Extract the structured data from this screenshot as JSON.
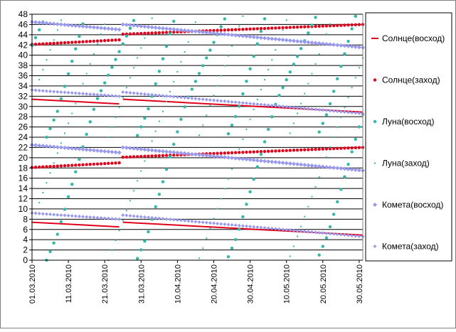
{
  "chart_data": {
    "type": "scatter",
    "x_range": [
      "01.03.2010",
      "31.05.2010"
    ],
    "x_ticks": [
      "01.03.2010",
      "11.03.2010",
      "21.03.2010",
      "31.03.2010",
      "10.04.2010",
      "20.04.2010",
      "30.04.2010",
      "10.05.2010",
      "20.05.2010",
      "30.05.2010"
    ],
    "ylim": [
      0,
      48
    ],
    "y_ticks": [
      "0",
      "2",
      "4",
      "6",
      "8",
      "10",
      "12",
      "14",
      "16",
      "18",
      "20",
      "22",
      "24",
      "26",
      "28",
      "30",
      "32",
      "34",
      "36",
      "38",
      "40",
      "42",
      "44",
      "46",
      "48"
    ],
    "grid": "horizontal",
    "legend_position": "right",
    "colors": {
      "sun": "#e0001a",
      "moon": "#33b8a8",
      "comet": "#9999ee",
      "grid": "#000000",
      "frame": "#808080"
    },
    "series": [
      {
        "name": "Солнце(восход)",
        "marker": "line",
        "color": "#e0001a",
        "x": [
          "01.03.2010",
          "25.03.2010",
          "26.03.2010",
          "31.05.2010"
        ],
        "y": [
          7.4,
          6.5,
          7.4,
          4.9
        ],
        "offsets": [
          0,
          24
        ]
      },
      {
        "name": "Солнце(заход)",
        "marker": "dot",
        "color": "#e0001a",
        "x": [
          "01.03.2010",
          "25.03.2010",
          "26.03.2010",
          "31.05.2010"
        ],
        "y": [
          18.1,
          19.0,
          20.1,
          22.0
        ],
        "offsets": [
          0,
          24
        ]
      },
      {
        "name": "Луна(восход)",
        "marker": "dot",
        "color": "#33b8a8",
        "period_days": 24.8,
        "first_zero": "05.03.2010",
        "offsets": [
          0,
          24
        ]
      },
      {
        "name": "Луна(заход)",
        "marker": "small-dot",
        "color": "#33b8a8",
        "period_days": 24.8,
        "first_zero": "22.03.2010",
        "offsets": [
          0,
          24
        ]
      },
      {
        "name": "Комета(восход)",
        "marker": "diamond",
        "color": "#9999ee",
        "x": [
          "01.03.2010",
          "25.03.2010",
          "26.03.2010",
          "31.05.2010"
        ],
        "y": [
          22.5,
          21.0,
          22.0,
          17.5
        ],
        "offsets": [
          0,
          24
        ]
      },
      {
        "name": "Комета(заход)",
        "marker": "diamond-small",
        "color": "#9999ee",
        "x": [
          "01.03.2010",
          "25.03.2010",
          "26.03.2010",
          "31.05.2010"
        ],
        "y": [
          9.2,
          8.0,
          8.8,
          4.6
        ],
        "offsets": [
          0,
          24
        ]
      }
    ]
  }
}
